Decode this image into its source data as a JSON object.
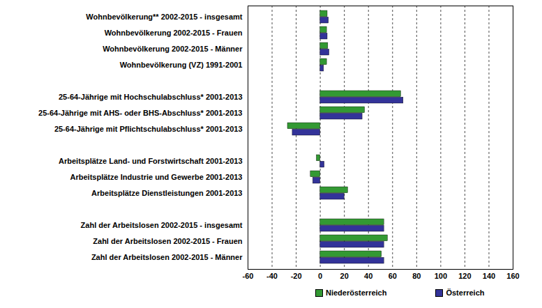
{
  "chart_data": {
    "type": "bar",
    "orientation": "horizontal",
    "categories": [
      "Wohnbevölkerung** 2002-2015 - insgesamt",
      "Wohnbevölkerung 2002-2015 - Frauen",
      "Wohnbevölkerung 2002-2015 - Männer",
      "Wohnbevölkerung (VZ) 1991-2001",
      null,
      "25-64-Jährige mit Hochschulabschluss* 2001-2013",
      "25-64-Jährige mit AHS- oder BHS-Abschluss* 2001-2013",
      "25-64-Jährige mit Pflichtschulabschluss* 2001-2013",
      null,
      "Arbeitsplätze Land- und Forstwirtschaft 2001-2013",
      "Arbeitsplätze Industrie und Gewerbe 2001-2013",
      "Arbeitsplätze Dienstleistungen 2001-2013",
      null,
      "Zahl der Arbeitslosen 2002-2015 - insgesamt",
      "Zahl der Arbeitslosen 2002-2015 - Frauen",
      "Zahl der Arbeitslosen 2002-2015 - Männer"
    ],
    "series": [
      {
        "name": "Niederösterreich",
        "color": "#339933",
        "values": [
          6,
          5.5,
          6.5,
          5.5,
          null,
          67,
          37,
          -27,
          null,
          -3,
          -8,
          23,
          null,
          53,
          56,
          51
        ]
      },
      {
        "name": "Österreich",
        "color": "#333399",
        "values": [
          7,
          6,
          7.5,
          3,
          null,
          69,
          35,
          -23,
          null,
          3.5,
          -6,
          20,
          null,
          53,
          53,
          53
        ]
      }
    ],
    "xlim": [
      -60,
      160
    ],
    "xticks": [
      -60,
      -40,
      -20,
      0,
      20,
      40,
      60,
      80,
      100,
      120,
      140,
      160
    ],
    "grid": true,
    "legend": "bottom"
  }
}
